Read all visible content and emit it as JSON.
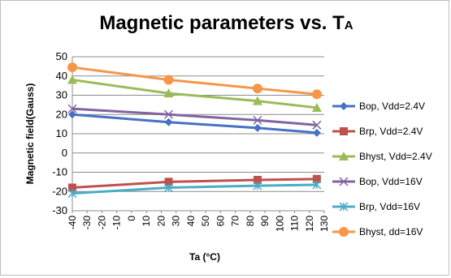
{
  "chart_data": {
    "type": "line",
    "title": "Magnetic parameters vs. T",
    "title_subscript": "A",
    "xlabel": "Ta (°C)",
    "ylabel": "Magnetic field(Gauss)",
    "ylim": [
      -30,
      50
    ],
    "xlim": [
      -40,
      130
    ],
    "yticks": [
      -30,
      -20,
      -10,
      0,
      10,
      20,
      30,
      40,
      50
    ],
    "xticks": [
      -40,
      -30,
      -20,
      -10,
      0,
      10,
      20,
      30,
      40,
      50,
      60,
      70,
      80,
      90,
      100,
      110,
      120,
      130
    ],
    "grid": "horizontal",
    "legend_position": "right",
    "series": [
      {
        "name": "Bop, Vdd=2.4V",
        "color": "#4472c4",
        "marker": "diamond",
        "x": [
          -40,
          25,
          85,
          125
        ],
        "y": [
          20,
          16,
          13,
          10.5
        ]
      },
      {
        "name": "Brp, Vdd=2.4V",
        "color": "#c0504d",
        "marker": "square",
        "x": [
          -40,
          25,
          85,
          125
        ],
        "y": [
          -18,
          -15,
          -14,
          -13.5
        ]
      },
      {
        "name": "Bhyst, Vdd=2.4V",
        "color": "#9bbb59",
        "marker": "triangle",
        "x": [
          -40,
          25,
          85,
          125
        ],
        "y": [
          38,
          31,
          27,
          23.5
        ]
      },
      {
        "name": "Bop, Vdd=16V",
        "color": "#8064a2",
        "marker": "x",
        "x": [
          -40,
          25,
          85,
          125
        ],
        "y": [
          23,
          20,
          17,
          14.5
        ]
      },
      {
        "name": "Brp, Vdd=16V",
        "color": "#4bacc6",
        "marker": "star",
        "x": [
          -40,
          25,
          85,
          125
        ],
        "y": [
          -21,
          -18,
          -17,
          -16.5
        ]
      },
      {
        "name": "Bhyst, dd=16V",
        "color": "#f79646",
        "marker": "circle",
        "x": [
          -40,
          25,
          85,
          125
        ],
        "y": [
          44.5,
          38,
          33.5,
          30.5
        ]
      }
    ]
  }
}
